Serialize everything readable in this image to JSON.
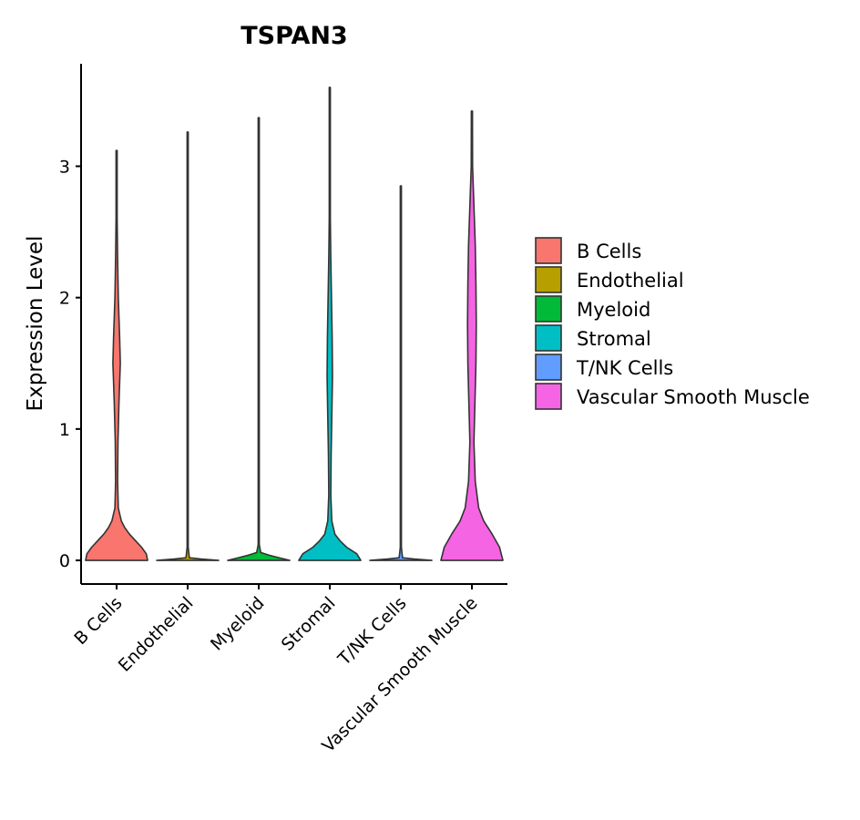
{
  "chart_data": {
    "type": "violin",
    "title": "TSPAN3",
    "xlabel": "",
    "ylabel": "Expression Level",
    "ylim": [
      -0.18,
      3.78
    ],
    "yticks": [
      0,
      1,
      2,
      3
    ],
    "grid": false,
    "legend_position": "right",
    "categories": [
      "B Cells",
      "Endothelial",
      "Myeloid",
      "Stromal",
      "T/NK Cells",
      "Vascular Smooth Muscle"
    ],
    "series": [
      {
        "name": "B Cells",
        "color": "#F8766D",
        "max": 3.12,
        "profile": [
          [
            0,
            0.92
          ],
          [
            0.05,
            0.88
          ],
          [
            0.1,
            0.74
          ],
          [
            0.15,
            0.56
          ],
          [
            0.2,
            0.38
          ],
          [
            0.25,
            0.24
          ],
          [
            0.3,
            0.14
          ],
          [
            0.4,
            0.05
          ],
          [
            0.6,
            0.03
          ],
          [
            0.9,
            0.04
          ],
          [
            1.2,
            0.07
          ],
          [
            1.5,
            0.11
          ],
          [
            1.7,
            0.09
          ],
          [
            2.0,
            0.05
          ],
          [
            2.3,
            0.03
          ],
          [
            2.6,
            0.015
          ],
          [
            3.12,
            0.005
          ]
        ]
      },
      {
        "name": "Endothelial",
        "color": "#B79F00",
        "max": 3.26,
        "profile": [
          [
            0,
            0.92
          ],
          [
            0.01,
            0.4
          ],
          [
            0.02,
            0.05
          ],
          [
            0.1,
            0.003
          ],
          [
            3.26,
            0.003
          ]
        ]
      },
      {
        "name": "Myeloid",
        "color": "#00BA38",
        "max": 3.37,
        "profile": [
          [
            0,
            0.92
          ],
          [
            0.02,
            0.6
          ],
          [
            0.04,
            0.3
          ],
          [
            0.06,
            0.06
          ],
          [
            0.12,
            0.005
          ],
          [
            3.37,
            0.004
          ]
        ]
      },
      {
        "name": "Stromal",
        "color": "#00BFC4",
        "max": 3.6,
        "profile": [
          [
            0,
            0.92
          ],
          [
            0.05,
            0.8
          ],
          [
            0.1,
            0.5
          ],
          [
            0.15,
            0.3
          ],
          [
            0.2,
            0.15
          ],
          [
            0.3,
            0.06
          ],
          [
            0.5,
            0.03
          ],
          [
            0.8,
            0.04
          ],
          [
            1.1,
            0.06
          ],
          [
            1.4,
            0.08
          ],
          [
            1.7,
            0.07
          ],
          [
            2.0,
            0.05
          ],
          [
            2.3,
            0.03
          ],
          [
            2.6,
            0.015
          ],
          [
            3.6,
            0.004
          ]
        ]
      },
      {
        "name": "T/NK Cells",
        "color": "#619CFF",
        "max": 2.85,
        "profile": [
          [
            0,
            0.92
          ],
          [
            0.01,
            0.4
          ],
          [
            0.02,
            0.05
          ],
          [
            0.1,
            0.003
          ],
          [
            2.85,
            0.003
          ]
        ]
      },
      {
        "name": "Vascular Smooth Muscle",
        "color": "#F564E3",
        "max": 3.42,
        "profile": [
          [
            0,
            0.92
          ],
          [
            0.1,
            0.82
          ],
          [
            0.2,
            0.6
          ],
          [
            0.3,
            0.35
          ],
          [
            0.4,
            0.2
          ],
          [
            0.6,
            0.1
          ],
          [
            0.9,
            0.06
          ],
          [
            1.2,
            0.09
          ],
          [
            1.5,
            0.12
          ],
          [
            1.8,
            0.13
          ],
          [
            2.1,
            0.12
          ],
          [
            2.4,
            0.1
          ],
          [
            2.7,
            0.06
          ],
          [
            3.0,
            0.02
          ],
          [
            3.42,
            0.005
          ]
        ]
      }
    ]
  }
}
